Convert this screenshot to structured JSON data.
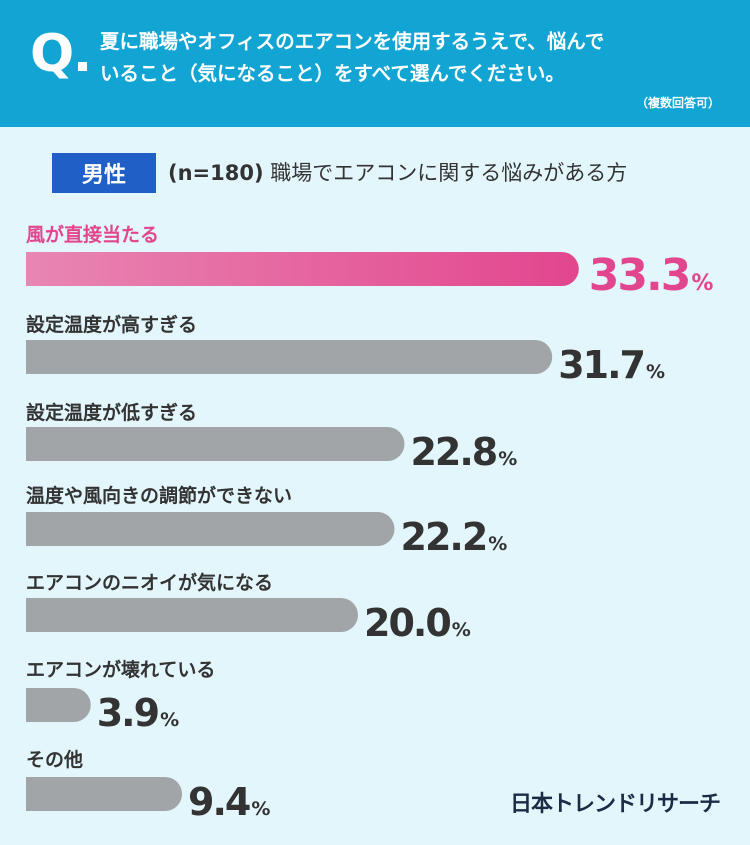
{
  "question": {
    "mark": "Q",
    "line1": "夏に職場やオフィスのエアコンを使用するうえで、悩んで",
    "line2": "いること（気になること）をすべて選んでください。",
    "note": "（複数回答可）"
  },
  "badge": "男性",
  "subtitle": {
    "n": "(n=180)",
    "text": "職場でエアコンに関する悩みがある方"
  },
  "brand": "日本トレンドリサーチ",
  "colors": {
    "highlight": "#e2468e",
    "highlight_light": "#e886b2",
    "bar": "#a2a5a8",
    "header": "#12a5d3",
    "badge": "#1f5fc6",
    "background": "#e3f6fb"
  },
  "chart_data": {
    "type": "bar",
    "orientation": "horizontal",
    "unit": "%",
    "categories": [
      "風が直接当たる",
      "設定温度が高すぎる",
      "設定温度が低すぎる",
      "温度や風向きの調節ができない",
      "エアコンのニオイが気になる",
      "エアコンが壊れている",
      "その他"
    ],
    "values": [
      33.3,
      31.7,
      22.8,
      22.2,
      20.0,
      3.9,
      9.4
    ],
    "value_labels": [
      "33.3",
      "31.7",
      "22.8",
      "22.2",
      "20.0",
      "3.9",
      "9.4"
    ],
    "highlight_index": 0
  }
}
